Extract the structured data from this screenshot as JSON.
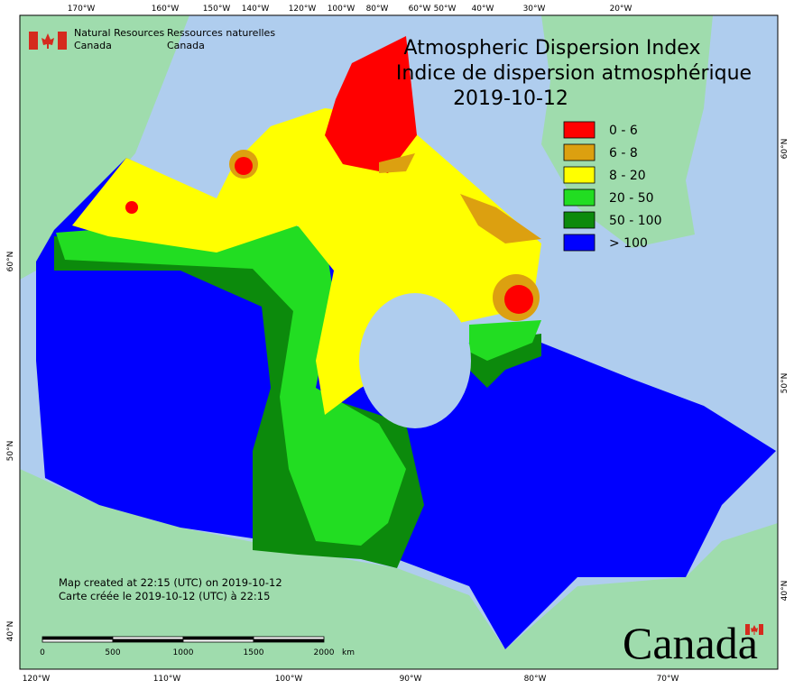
{
  "header": {
    "org_en": [
      "Natural Resources",
      "Canada"
    ],
    "org_fr": [
      "Ressources naturelles",
      "Canada"
    ]
  },
  "title": {
    "line1": "Atmospheric Dispersion Index",
    "line2": "Indice de dispersion atmosphérique",
    "date": "2019-10-12"
  },
  "legend": {
    "items": [
      {
        "label": "0 - 6",
        "color": "#ff0000"
      },
      {
        "label": "6 - 8",
        "color": "#dca010"
      },
      {
        "label": "8 - 20",
        "color": "#ffff00"
      },
      {
        "label": "20 - 50",
        "color": "#22dd22"
      },
      {
        "label": "50 - 100",
        "color": "#0c8a0c"
      },
      {
        "label": "> 100",
        "color": "#0000ff"
      }
    ]
  },
  "graticule": {
    "top": [
      "170°W",
      "160°W",
      "150°W",
      "140°W",
      "120°W",
      "100°W",
      "80°W",
      "60°W",
      "50°W",
      "40°W",
      "30°W",
      "20°W"
    ],
    "bottom": [
      "120°W",
      "110°W",
      "100°W",
      "90°W",
      "80°W",
      "70°W"
    ],
    "left": [
      "60°N",
      "50°N",
      "40°N"
    ],
    "right": [
      "60°N",
      "50°N",
      "40°N"
    ]
  },
  "notes": [
    "Map created at 22:15 (UTC) on 2019-10-12",
    "Carte créée le 2019-10-12 (UTC) à 22:15"
  ],
  "scale": {
    "ticks": [
      "0",
      "500",
      "1000",
      "1500",
      "2000"
    ],
    "unit": "km"
  },
  "wordmark": "Canada"
}
